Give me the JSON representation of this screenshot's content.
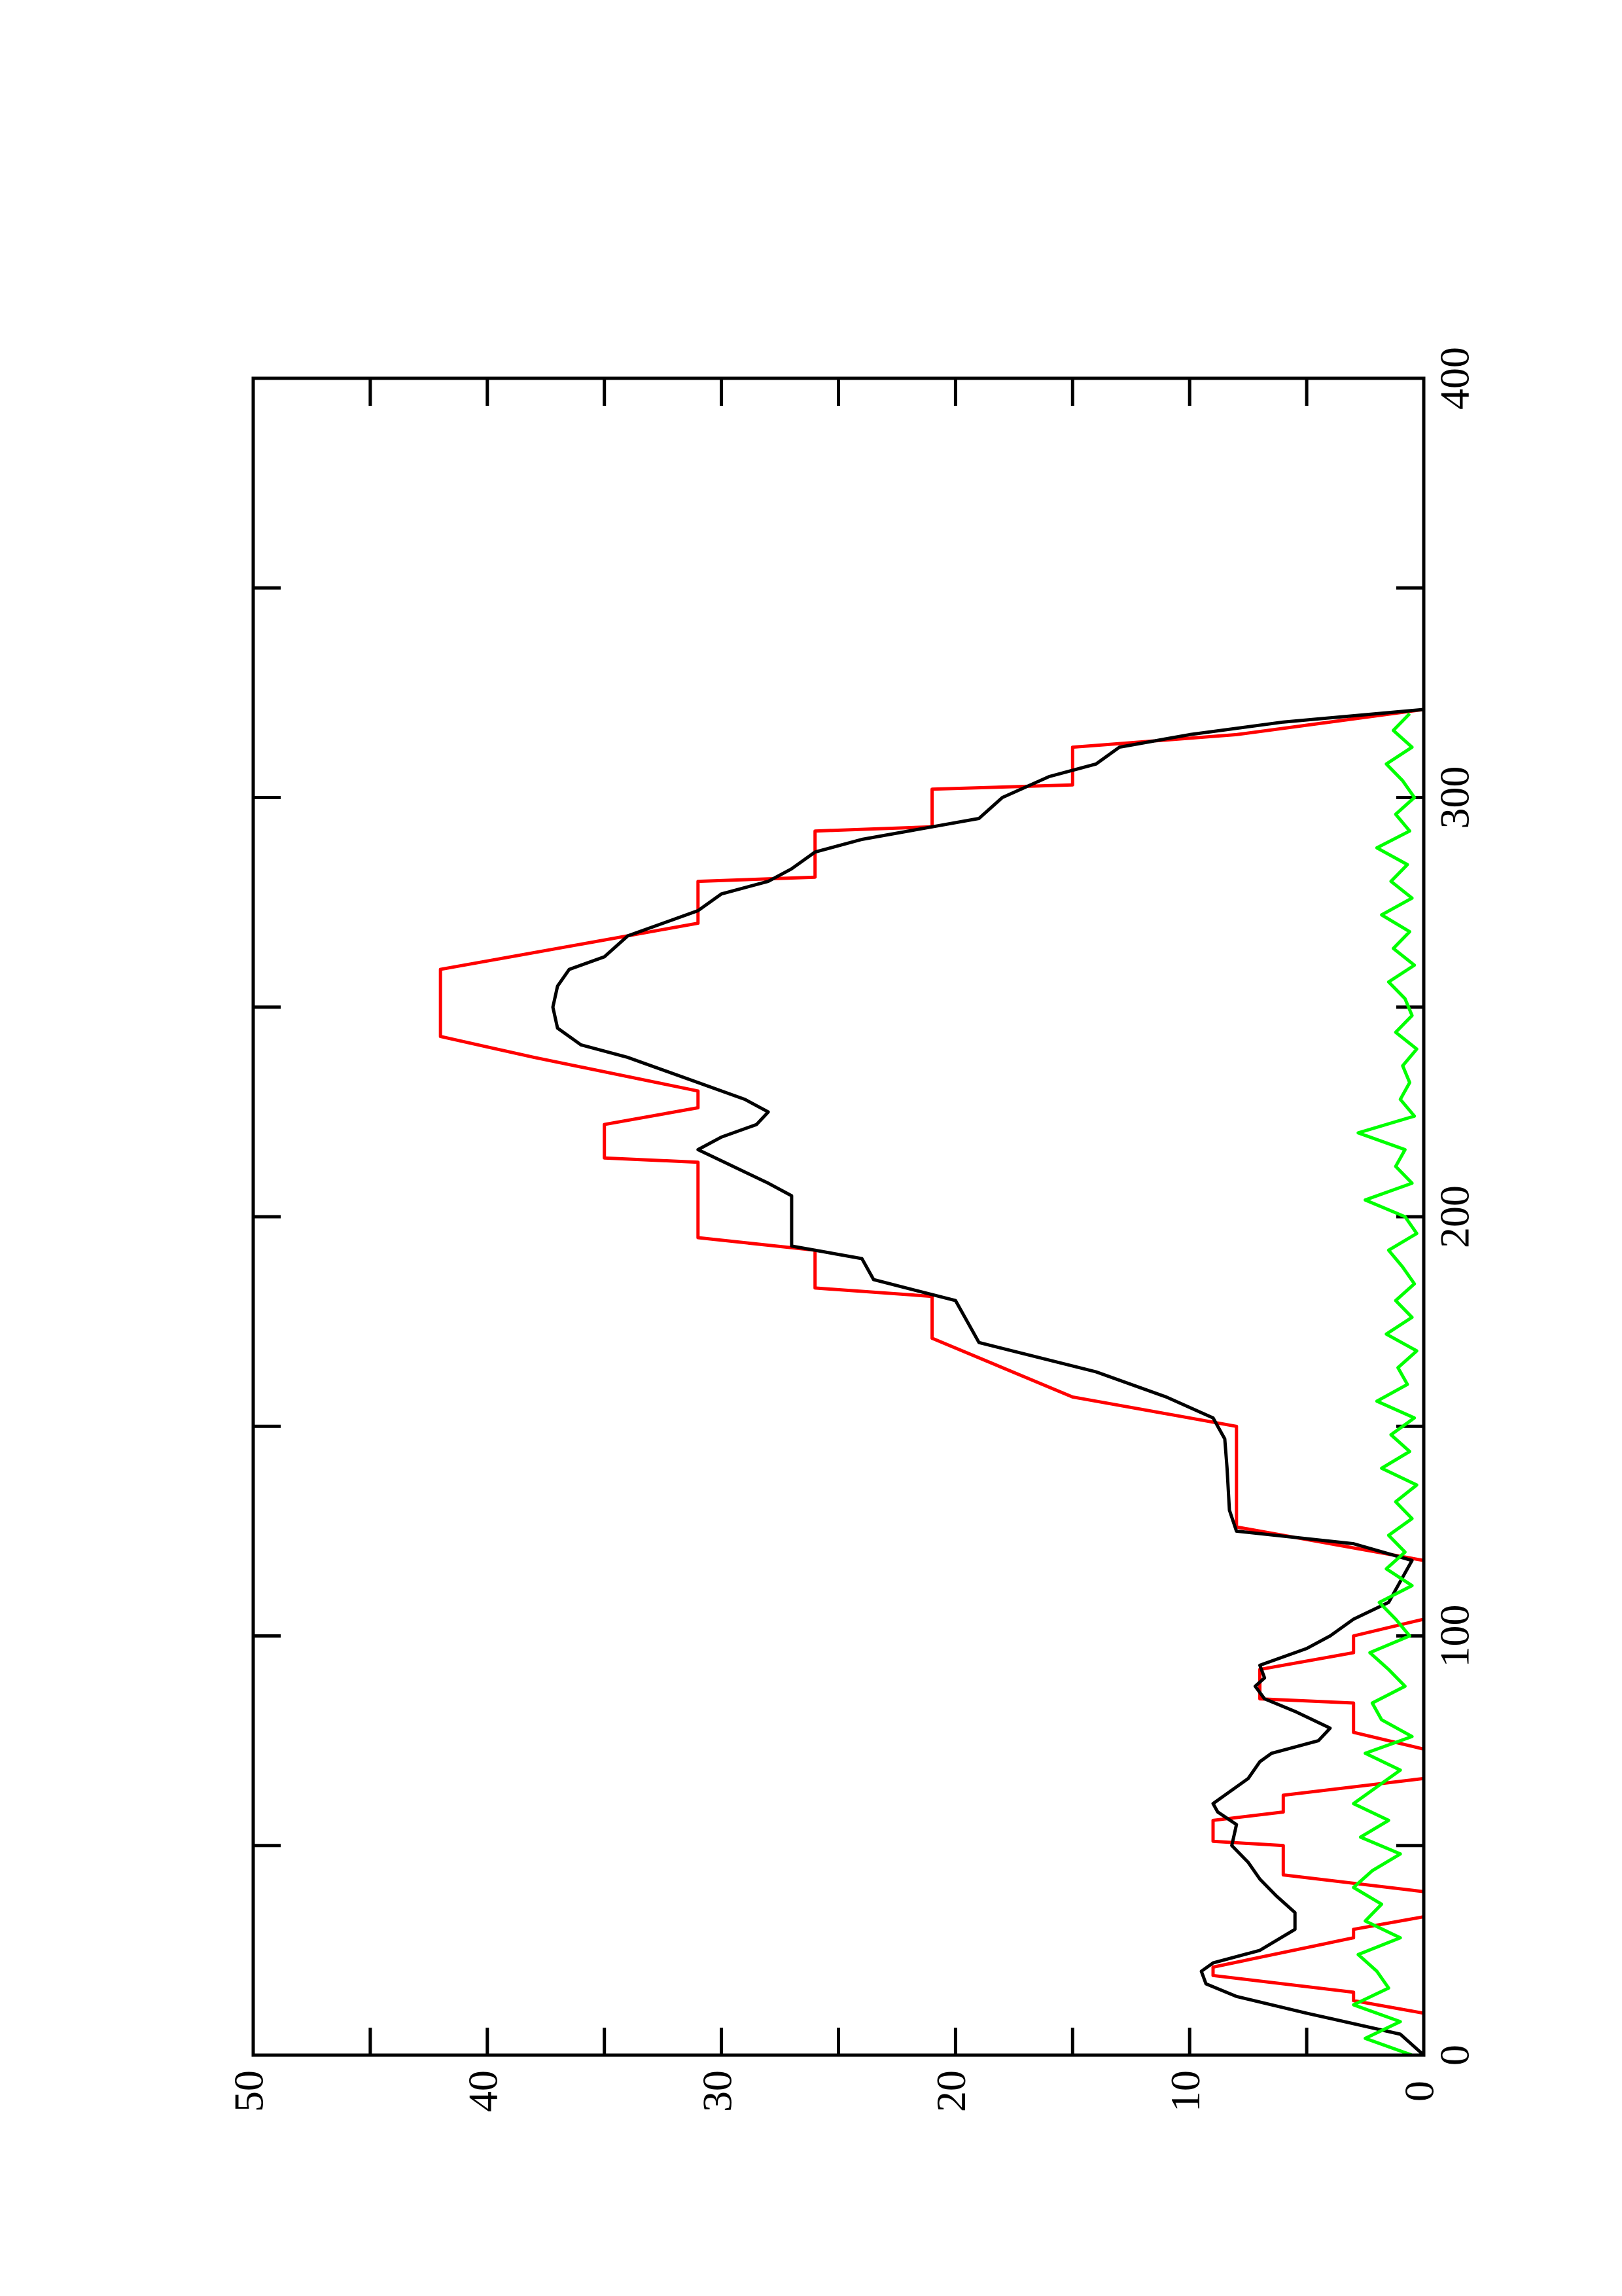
{
  "chart_data": {
    "type": "line",
    "xlim": [
      0,
      400
    ],
    "xticks": [
      0,
      100,
      200,
      300,
      400
    ],
    "xminorticks": [
      50,
      150,
      250,
      350
    ],
    "ylim": [
      0,
      50
    ],
    "yticks": [
      0,
      10,
      20,
      30,
      40,
      50
    ],
    "yminorticks": [
      5,
      15,
      25,
      35,
      45
    ],
    "series": [
      {
        "color": "#ff0000",
        "x": [
          10,
          13,
          15,
          19,
          21,
          28,
          30,
          33,
          39,
          43,
          50,
          51,
          56,
          58,
          62,
          66,
          73,
          77,
          84,
          85,
          92,
          96,
          100,
          104,
          118,
          126,
          150,
          157,
          171,
          181,
          183,
          192,
          195,
          213,
          214,
          222,
          226,
          230,
          238,
          243,
          259,
          270,
          280,
          281,
          292,
          293,
          302,
          303,
          312,
          315,
          321
        ],
        "values": [
          0,
          3,
          3,
          9,
          9,
          3,
          3,
          0,
          0,
          6,
          6,
          9,
          9,
          6,
          6,
          0,
          0,
          3,
          3,
          7,
          7,
          3,
          3,
          0,
          0,
          8,
          8,
          15,
          21,
          21,
          26,
          26,
          31,
          31,
          35,
          35,
          31,
          31,
          38,
          42,
          42,
          31,
          31,
          26,
          26,
          21,
          21,
          15,
          15,
          8,
          0
        ]
      },
      {
        "color": "#000000",
        "x": [
          0,
          5,
          10,
          14,
          17,
          20,
          22,
          25,
          30,
          34,
          38,
          42,
          46,
          50,
          55,
          58,
          60,
          62,
          66,
          70,
          72,
          75,
          78,
          82,
          85,
          88,
          90,
          93,
          97,
          100,
          104,
          108,
          113,
          118,
          122,
          125,
          130,
          140,
          147,
          152,
          157,
          163,
          170,
          175,
          180,
          185,
          190,
          193,
          205,
          208,
          212,
          216,
          219,
          222,
          225,
          228,
          232,
          238,
          241,
          245,
          250,
          255,
          259,
          262,
          267,
          273,
          277,
          280,
          283,
          287,
          290,
          295,
          300,
          305,
          308,
          312,
          315,
          318,
          321
        ],
        "values": [
          0,
          1,
          5,
          8,
          9.3,
          9.5,
          9,
          7,
          5.5,
          5.5,
          6.3,
          7,
          7.5,
          8.2,
          8,
          8.8,
          9,
          8.5,
          7.5,
          7,
          6.5,
          4.5,
          4,
          5.5,
          6.8,
          7.2,
          6.8,
          7,
          5,
          4,
          3,
          1.5,
          1,
          0.5,
          3,
          8,
          8.3,
          8.4,
          8.5,
          9,
          11,
          14,
          19,
          19.5,
          20,
          23.5,
          24,
          27,
          27,
          28,
          29.5,
          31,
          30,
          28.5,
          28,
          29,
          31,
          34,
          36,
          37,
          37.2,
          37,
          36.5,
          35,
          34,
          31,
          30,
          28,
          27,
          26,
          24,
          19,
          18,
          16,
          14,
          13,
          10,
          6,
          0
        ]
      },
      {
        "color": "#00ff00",
        "x": [
          0,
          4,
          8,
          12,
          16,
          20,
          24,
          28,
          32,
          36,
          40,
          44,
          48,
          52,
          56,
          60,
          64,
          68,
          72,
          76,
          80,
          84,
          88,
          92,
          96,
          100,
          104,
          108,
          112,
          116,
          120,
          124,
          128,
          132,
          136,
          140,
          144,
          148,
          152,
          156,
          160,
          164,
          168,
          172,
          176,
          180,
          184,
          188,
          192,
          196,
          200,
          204,
          208,
          212,
          216,
          220,
          224,
          228,
          232,
          236,
          240,
          244,
          248,
          252,
          256,
          260,
          264,
          268,
          272,
          276,
          280,
          284,
          288,
          292,
          296,
          300,
          304,
          308,
          312,
          316,
          320
        ],
        "values": [
          0.5,
          2.5,
          1,
          3,
          1.5,
          2,
          2.8,
          1,
          2.5,
          1.8,
          3,
          2.2,
          1,
          2.7,
          1.5,
          3,
          2,
          1,
          2.5,
          0.5,
          1.8,
          2.2,
          0.8,
          1.5,
          2.3,
          0.6,
          1.2,
          1.9,
          0.5,
          1.6,
          0.8,
          1.5,
          0.5,
          1.2,
          0.3,
          1.8,
          0.6,
          1.4,
          0.4,
          2,
          0.7,
          1.1,
          0.3,
          1.6,
          0.5,
          1.2,
          0.4,
          0.9,
          1.5,
          0.3,
          0.8,
          2.5,
          0.5,
          1.2,
          0.8,
          2.8,
          0.4,
          1,
          0.6,
          0.9,
          0.3,
          1.2,
          0.5,
          0.8,
          1.5,
          0.4,
          1.3,
          0.6,
          1.8,
          0.5,
          1.4,
          0.7,
          2,
          0.6,
          1.2,
          0.4,
          0.9,
          1.6,
          0.5,
          1.3,
          0.6
        ]
      }
    ]
  }
}
